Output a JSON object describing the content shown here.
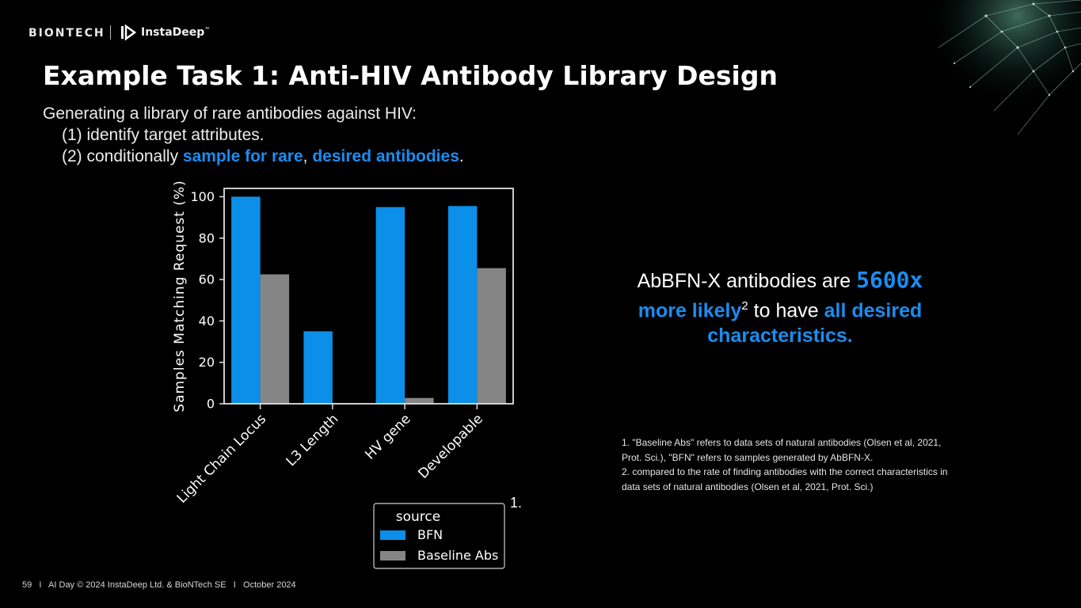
{
  "header": {
    "brand_biontech": "BIONTECH",
    "brand_instadeep": "InstaDeep",
    "brand_instadeep_tm": "™"
  },
  "slide": {
    "title": "Example Task 1: Anti-HIV Antibody Library Design",
    "intro_line1": "Generating a library of rare antibodies against HIV:",
    "intro_line2": "(1) identify target attributes.",
    "intro_line3_prefix": "(2) conditionally ",
    "intro_line3_hl1": "sample for rare",
    "intro_line3_mid": ", ",
    "intro_line3_hl2": "desired antibodies",
    "intro_line3_end": "."
  },
  "callout": {
    "text1": "AbBFN-X antibodies are ",
    "highlight1": "5600x",
    "highlight2": "more likely",
    "superscript": "2",
    "text2": " to have ",
    "highlight3": "all desired characteristics."
  },
  "notes": {
    "note1": "1. \"Baseline Abs\" refers to data sets of natural antibodies (Olsen et al, 2021, Prot. Sci.), \"BFN\" refers to samples generated by AbBFN-X.",
    "note2": "2. compared to the rate of finding antibodies with the correct characteristics in data sets of natural antibodies (Olsen et al, 2021, Prot. Sci.)"
  },
  "figure_marker": "1.",
  "footer": {
    "page": "59",
    "sep": "I",
    "text": "AI Day © 2024 InstaDeep Ltd. & BioNTech SE",
    "date": "October 2024"
  },
  "colors": {
    "accent_blue": "#1a8df0",
    "bfn": "#0b8fe8",
    "baseline": "#858585",
    "background": "#000000"
  },
  "chart_data": {
    "type": "bar",
    "categories": [
      "Light Chain Locus",
      "L3 Length",
      "HV gene",
      "Developable"
    ],
    "series": [
      {
        "name": "BFN",
        "values": [
          100,
          35,
          95,
          95.5
        ]
      },
      {
        "name": "Baseline Abs",
        "values": [
          62.5,
          0.3,
          2.8,
          65.5
        ]
      }
    ],
    "ylabel": "Samples Matching Request (%)",
    "xlabel": "",
    "ylim": [
      0,
      104
    ],
    "yticks": [
      0,
      20,
      40,
      60,
      80,
      100
    ],
    "legend_title": "source",
    "legend_position": "below",
    "grid": false
  }
}
